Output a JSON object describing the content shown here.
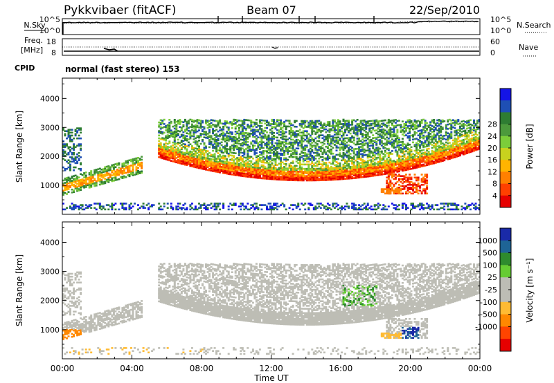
{
  "header": {
    "station": "Pykkvibaer (fitACF)",
    "beam": "Beam 07",
    "date": "22/Sep/2010",
    "mode": "normal (fast stereo) 153"
  },
  "strip": {
    "nsky_label": "N.Sky",
    "nsky_ticks": [
      "10^5",
      "10^0"
    ],
    "nsearch_label": "N.Search",
    "nsearch_ticks": [
      "10^5",
      "10^0"
    ],
    "freq_label_1": "Freq.",
    "freq_label_2": "[MHz]",
    "freq_ticks": [
      "18",
      "8"
    ],
    "nave_label": "Nave",
    "nave_ticks": [
      "60",
      "0"
    ],
    "cpid_label": "CPID"
  },
  "colors": {
    "power": [
      "#1414e6",
      "#1e4fb4",
      "#2e7d32",
      "#4c9a3c",
      "#7ccd3a",
      "#c8d21e",
      "#ffb400",
      "#ff8000",
      "#ff4000",
      "#e60000"
    ],
    "velocity": [
      "#1a2aa8",
      "#1e6496",
      "#2e8b2e",
      "#66cc33",
      "#bdbdb5",
      "#bdbdb5",
      "#ffbb33",
      "#ff8800",
      "#ff4400",
      "#e60000"
    ]
  },
  "chart_data": [
    {
      "type": "heatmap",
      "name": "power",
      "ylabel": "Slant Range [km]",
      "xlim": [
        0,
        24
      ],
      "ylim": [
        0,
        4700
      ],
      "yticks": [
        "1000",
        "2000",
        "3000",
        "4000"
      ],
      "colorbar": {
        "label": "Power [dB]",
        "ticks": [
          "4",
          "8",
          "12",
          "16",
          "20",
          "24",
          "28"
        ]
      }
    },
    {
      "type": "heatmap",
      "name": "velocity",
      "xlabel": "Time UT",
      "ylabel": "Slant Range [km]",
      "xlim": [
        0,
        24
      ],
      "ylim": [
        0,
        4700
      ],
      "xticks": [
        "00:00",
        "04:00",
        "08:00",
        "12:00",
        "16:00",
        "20:00",
        "00:00"
      ],
      "yticks": [
        "1000",
        "2000",
        "3000",
        "4000"
      ],
      "colorbar": {
        "label": "Velocity [m s⁻¹]",
        "ticks": [
          "1000",
          "500",
          "100",
          "25",
          "-25",
          "-100",
          "-500",
          "-1000"
        ]
      }
    }
  ]
}
